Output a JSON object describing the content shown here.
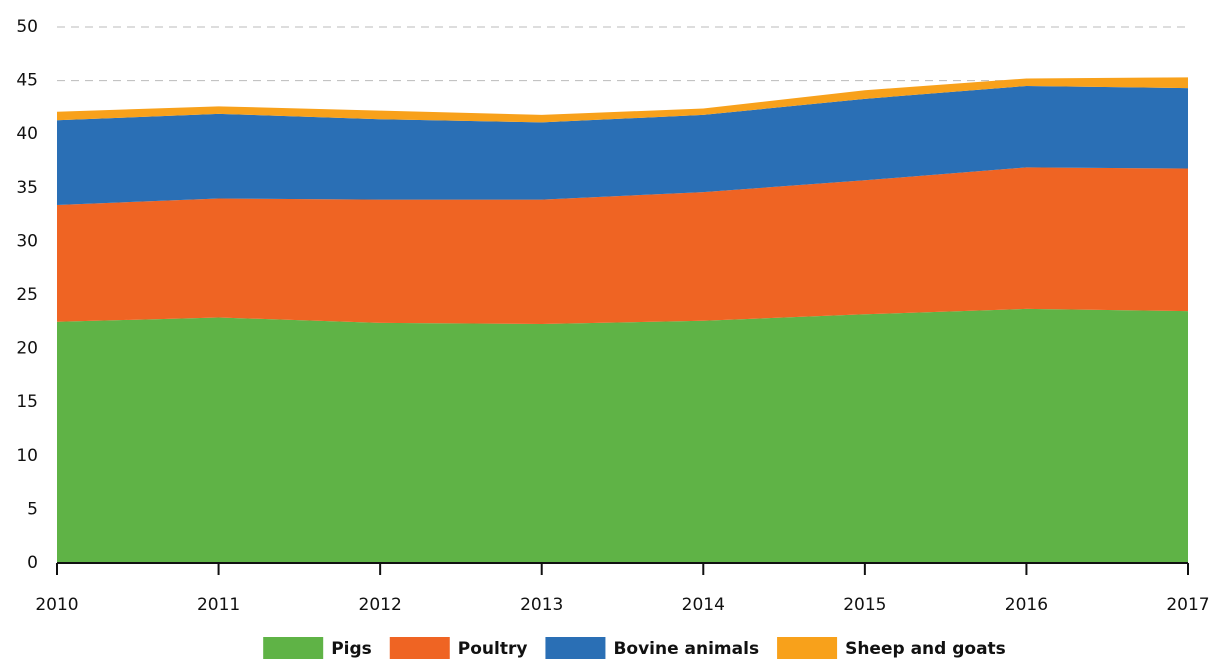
{
  "chart_data": {
    "type": "stacked-area",
    "x": [
      2010,
      2011,
      2012,
      2013,
      2014,
      2015,
      2016,
      2017
    ],
    "xlim": [
      2010,
      2017
    ],
    "xticks": [
      2010,
      2011,
      2012,
      2013,
      2014,
      2015,
      2016,
      2017
    ],
    "ylim": [
      0,
      50
    ],
    "yticks": [
      0,
      5,
      10,
      15,
      20,
      25,
      30,
      35,
      40,
      45,
      50
    ],
    "grid": true,
    "legend": "bottom",
    "series": [
      {
        "name": "Pigs",
        "color": "#5fb346",
        "values": [
          22.5,
          22.9,
          22.4,
          22.3,
          22.6,
          23.2,
          23.7,
          23.5
        ]
      },
      {
        "name": "Poultry",
        "color": "#ef6423",
        "values": [
          10.9,
          11.1,
          11.5,
          11.6,
          12.0,
          12.5,
          13.2,
          13.3
        ]
      },
      {
        "name": "Bovine animals",
        "color": "#2a6fb5",
        "values": [
          7.9,
          7.9,
          7.5,
          7.2,
          7.2,
          7.6,
          7.6,
          7.5
        ]
      },
      {
        "name": "Sheep and goats",
        "color": "#f8a11b",
        "values": [
          0.8,
          0.7,
          0.8,
          0.7,
          0.6,
          0.8,
          0.7,
          1.0
        ]
      }
    ]
  }
}
